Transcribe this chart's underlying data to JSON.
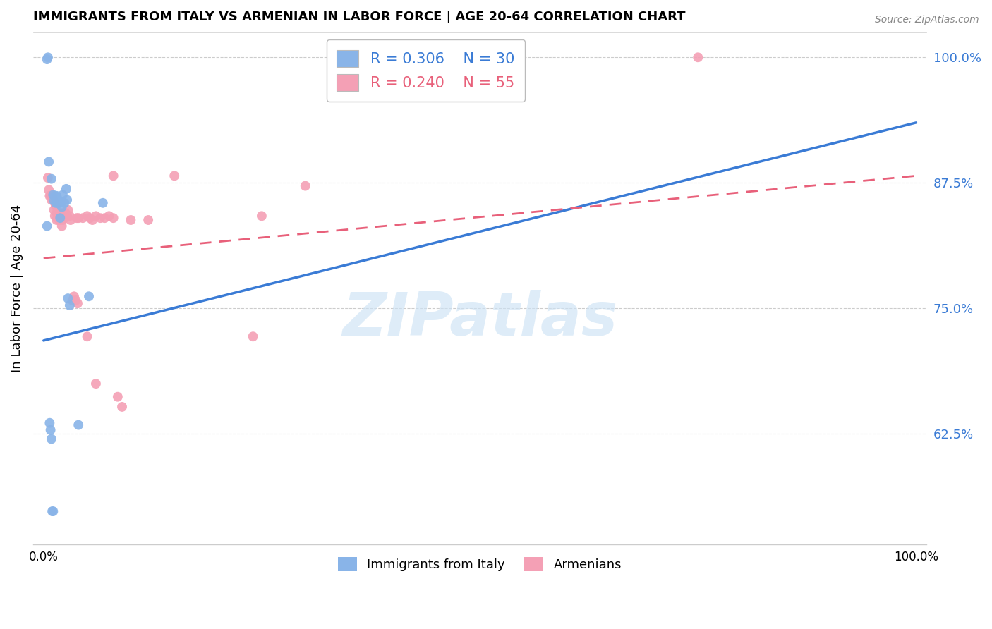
{
  "title": "IMMIGRANTS FROM ITALY VS ARMENIAN IN LABOR FORCE | AGE 20-64 CORRELATION CHART",
  "source": "Source: ZipAtlas.com",
  "ylabel": "In Labor Force | Age 20-64",
  "yticks": [
    0.625,
    0.75,
    0.875,
    1.0
  ],
  "ytick_labels": [
    "62.5%",
    "75.0%",
    "87.5%",
    "100.0%"
  ],
  "xlim": [
    -0.012,
    1.012
  ],
  "ylim": [
    0.515,
    1.025
  ],
  "legend_italy_r": "R = 0.306",
  "legend_italy_n": "N = 30",
  "legend_armenian_r": "R = 0.240",
  "legend_armenian_n": "N = 55",
  "italy_color": "#89b4e8",
  "armenian_color": "#f4a0b5",
  "italy_line_color": "#3a7bd5",
  "armenian_line_color": "#e8607a",
  "watermark_text": "ZIPatlas",
  "watermark_color": "#cde3f5",
  "italy_line_x0": 0.0,
  "italy_line_y0": 0.718,
  "italy_line_x1": 1.0,
  "italy_line_y1": 0.935,
  "armenian_line_x0": 0.0,
  "armenian_line_y0": 0.8,
  "armenian_line_x1": 1.0,
  "armenian_line_y1": 0.882,
  "italy_points_x": [
    0.004,
    0.006,
    0.009,
    0.011,
    0.012,
    0.013,
    0.014,
    0.015,
    0.016,
    0.017,
    0.018,
    0.019,
    0.02,
    0.021,
    0.022,
    0.024,
    0.026,
    0.027,
    0.028,
    0.03,
    0.007,
    0.008,
    0.009,
    0.01,
    0.04,
    0.052,
    0.068,
    0.004,
    0.005,
    0.011
  ],
  "italy_points_y": [
    0.832,
    0.896,
    0.879,
    0.863,
    0.857,
    0.862,
    0.855,
    0.862,
    0.855,
    0.858,
    0.855,
    0.84,
    0.856,
    0.851,
    0.863,
    0.855,
    0.869,
    0.858,
    0.76,
    0.753,
    0.636,
    0.629,
    0.62,
    0.548,
    0.634,
    0.762,
    0.855,
    0.998,
    1.0,
    0.548
  ],
  "armenian_points_x": [
    0.005,
    0.006,
    0.007,
    0.008,
    0.009,
    0.01,
    0.011,
    0.012,
    0.013,
    0.013,
    0.014,
    0.015,
    0.015,
    0.016,
    0.017,
    0.018,
    0.019,
    0.02,
    0.021,
    0.022,
    0.023,
    0.024,
    0.025,
    0.026,
    0.027,
    0.028,
    0.03,
    0.031,
    0.033,
    0.035,
    0.037,
    0.039,
    0.04,
    0.045,
    0.05,
    0.053,
    0.056,
    0.06,
    0.065,
    0.07,
    0.075,
    0.1,
    0.12,
    0.24,
    0.25,
    0.15,
    0.08,
    0.085,
    0.09,
    0.3,
    0.08,
    0.06,
    0.038,
    0.05,
    0.75
  ],
  "armenian_points_y": [
    0.88,
    0.868,
    0.862,
    0.862,
    0.858,
    0.862,
    0.858,
    0.848,
    0.855,
    0.842,
    0.852,
    0.845,
    0.838,
    0.84,
    0.842,
    0.838,
    0.845,
    0.84,
    0.832,
    0.838,
    0.845,
    0.84,
    0.845,
    0.842,
    0.842,
    0.848,
    0.842,
    0.838,
    0.758,
    0.762,
    0.758,
    0.755,
    0.84,
    0.84,
    0.842,
    0.84,
    0.838,
    0.842,
    0.84,
    0.84,
    0.842,
    0.838,
    0.838,
    0.722,
    0.842,
    0.882,
    0.882,
    0.662,
    0.652,
    0.872,
    0.84,
    0.675,
    0.84,
    0.722,
    1.0
  ]
}
